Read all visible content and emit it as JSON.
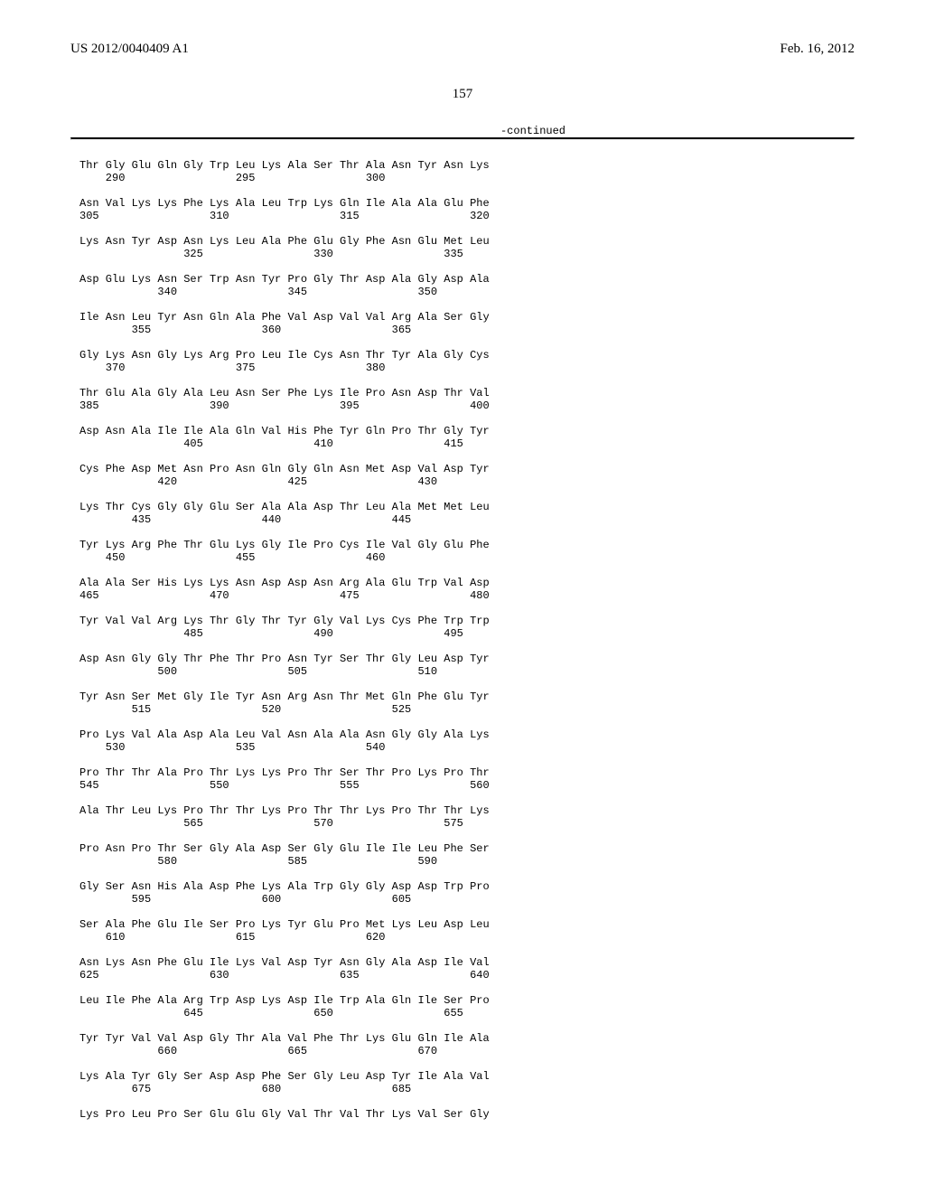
{
  "header": {
    "left": "US 2012/0040409 A1",
    "right": "Feb. 16, 2012",
    "pagenum": "157"
  },
  "continued": "-continued",
  "sequence": "Thr Gly Glu Gln Gly Trp Leu Lys Ala Ser Thr Ala Asn Tyr Asn Lys\n    290                 295                 300\n\nAsn Val Lys Lys Phe Lys Ala Leu Trp Lys Gln Ile Ala Ala Glu Phe\n305                 310                 315                 320\n\nLys Asn Tyr Asp Asn Lys Leu Ala Phe Glu Gly Phe Asn Glu Met Leu\n                325                 330                 335\n\nAsp Glu Lys Asn Ser Trp Asn Tyr Pro Gly Thr Asp Ala Gly Asp Ala\n            340                 345                 350\n\nIle Asn Leu Tyr Asn Gln Ala Phe Val Asp Val Val Arg Ala Ser Gly\n        355                 360                 365\n\nGly Lys Asn Gly Lys Arg Pro Leu Ile Cys Asn Thr Tyr Ala Gly Cys\n    370                 375                 380\n\nThr Glu Ala Gly Ala Leu Asn Ser Phe Lys Ile Pro Asn Asp Thr Val\n385                 390                 395                 400\n\nAsp Asn Ala Ile Ile Ala Gln Val His Phe Tyr Gln Pro Thr Gly Tyr\n                405                 410                 415\n\nCys Phe Asp Met Asn Pro Asn Gln Gly Gln Asn Met Asp Val Asp Tyr\n            420                 425                 430\n\nLys Thr Cys Gly Gly Glu Ser Ala Ala Asp Thr Leu Ala Met Met Leu\n        435                 440                 445\n\nTyr Lys Arg Phe Thr Glu Lys Gly Ile Pro Cys Ile Val Gly Glu Phe\n    450                 455                 460\n\nAla Ala Ser His Lys Lys Asn Asp Asp Asn Arg Ala Glu Trp Val Asp\n465                 470                 475                 480\n\nTyr Val Val Arg Lys Thr Gly Thr Tyr Gly Val Lys Cys Phe Trp Trp\n                485                 490                 495\n\nAsp Asn Gly Gly Thr Phe Thr Pro Asn Tyr Ser Thr Gly Leu Asp Tyr\n            500                 505                 510\n\nTyr Asn Ser Met Gly Ile Tyr Asn Arg Asn Thr Met Gln Phe Glu Tyr\n        515                 520                 525\n\nPro Lys Val Ala Asp Ala Leu Val Asn Ala Ala Asn Gly Gly Ala Lys\n    530                 535                 540\n\nPro Thr Thr Ala Pro Thr Lys Lys Pro Thr Ser Thr Pro Lys Pro Thr\n545                 550                 555                 560\n\nAla Thr Leu Lys Pro Thr Thr Lys Pro Thr Thr Lys Pro Thr Thr Lys\n                565                 570                 575\n\nPro Asn Pro Thr Ser Gly Ala Asp Ser Gly Glu Ile Ile Leu Phe Ser\n            580                 585                 590\n\nGly Ser Asn His Ala Asp Phe Lys Ala Trp Gly Gly Asp Asp Trp Pro\n        595                 600                 605\n\nSer Ala Phe Glu Ile Ser Pro Lys Tyr Glu Pro Met Lys Leu Asp Leu\n    610                 615                 620\n\nAsn Lys Asn Phe Glu Ile Lys Val Asp Tyr Asn Gly Ala Asp Ile Val\n625                 630                 635                 640\n\nLeu Ile Phe Ala Arg Trp Asp Lys Asp Ile Trp Ala Gln Ile Ser Pro\n                645                 650                 655\n\nTyr Tyr Val Val Asp Gly Thr Ala Val Phe Thr Lys Glu Gln Ile Ala\n            660                 665                 670\n\nLys Ala Tyr Gly Ser Asp Asp Phe Ser Gly Leu Asp Tyr Ile Ala Val\n        675                 680                 685\n\nLys Pro Leu Pro Ser Glu Glu Gly Val Thr Val Thr Lys Val Ser Gly"
}
